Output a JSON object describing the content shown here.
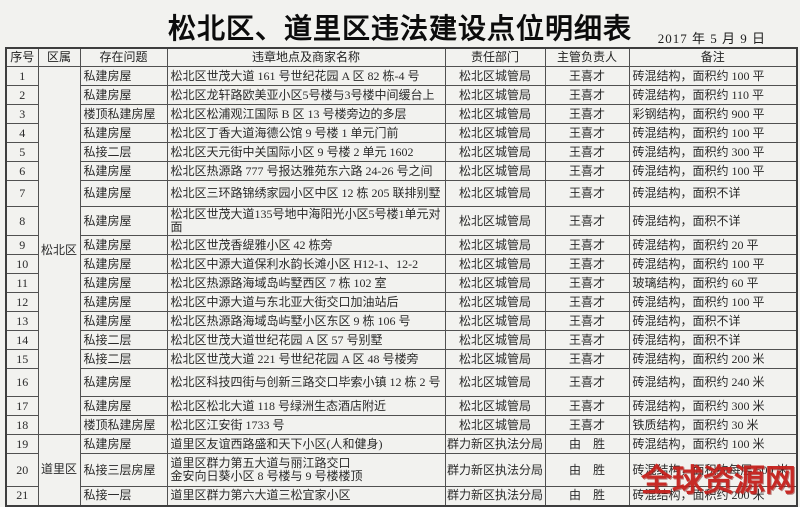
{
  "title": "松北区、道里区违法建设点位明细表",
  "date": "2017 年 5 月 9 日",
  "watermark": {
    "text": "全球资源网",
    "color": "#c5201c"
  },
  "table": {
    "columns": [
      "序号",
      "区属",
      "存在问题",
      "违章地点及商家名称",
      "责任部门",
      "主管负责人",
      "备注"
    ],
    "districts": [
      {
        "label": "松北区",
        "start": 1,
        "span": 18
      },
      {
        "label": "道里区",
        "start": 19,
        "span": 3
      }
    ],
    "rows": [
      {
        "no": "1",
        "problem": "私建房屋",
        "location": "松北区世茂大道 161 号世纪花园 A 区 82 栋-4 号",
        "department": "松北区城管局",
        "manager": "王喜才",
        "remark": "砖混结构，面积约 100 平"
      },
      {
        "no": "2",
        "problem": "私建房屋",
        "location": "松北区龙轩路欧美亚小区5号楼与3号楼中间缓台上",
        "department": "松北区城管局",
        "manager": "王喜才",
        "remark": "砖混结构，面积约 110 平"
      },
      {
        "no": "3",
        "problem": "楼顶私建房屋",
        "location": "松北区松浦观江国际 B 区 13 号楼旁边的多层",
        "department": "松北区城管局",
        "manager": "王喜才",
        "remark": "彩钢结构，面积约 900 平"
      },
      {
        "no": "4",
        "problem": "私建房屋",
        "location": "松北区丁香大道海德公馆 9 号楼 1 单元门前",
        "department": "松北区城管局",
        "manager": "王喜才",
        "remark": "砖混结构，面积约 100 平"
      },
      {
        "no": "5",
        "problem": "私接二层",
        "location": "松北区天元街中关国际小区 9 号楼 2 单元 1602",
        "department": "松北区城管局",
        "manager": "王喜才",
        "remark": "砖混结构，面积约 300 平"
      },
      {
        "no": "6",
        "problem": "私建房屋",
        "location": "松北区热源路 777 号报达雅苑东六路 24-26 号之间",
        "department": "松北区城管局",
        "manager": "王喜才",
        "remark": "砖混结构，面积约 100 平"
      },
      {
        "no": "7",
        "problem": "私建房屋",
        "location": "松北区三环路锦绣家园小区中区 12 栋 205 联排别墅",
        "department": "松北区城管局",
        "manager": "王喜才",
        "remark": "砖混结构，面积不详"
      },
      {
        "no": "8",
        "problem": "私建房屋",
        "location": "松北区世茂大道135号地中海阳光小区5号楼1单元对面",
        "department": "松北区城管局",
        "manager": "王喜才",
        "remark": "砖混结构，面积不详"
      },
      {
        "no": "9",
        "problem": "私建房屋",
        "location": "松北区世茂香缇雅小区 42 栋旁",
        "department": "松北区城管局",
        "manager": "王喜才",
        "remark": "砖混结构，面积约 20 平"
      },
      {
        "no": "10",
        "problem": "私建房屋",
        "location": "松北区中源大道保利水韵长滩小区 H12-1、12-2",
        "department": "松北区城管局",
        "manager": "王喜才",
        "remark": "砖混结构，面积约 100 平"
      },
      {
        "no": "11",
        "problem": "私建房屋",
        "location": "松北区热源路海域岛屿墅西区 7 栋 102 室",
        "department": "松北区城管局",
        "manager": "王喜才",
        "remark": "玻璃结构，面积约 60 平"
      },
      {
        "no": "12",
        "problem": "私建房屋",
        "location": "松北区中源大道与东北亚大街交口加油站后",
        "department": "松北区城管局",
        "manager": "王喜才",
        "remark": "砖混结构，面积约 100 平"
      },
      {
        "no": "13",
        "problem": "私建房屋",
        "location": "松北区热源路海域岛屿墅小区东区 9 栋 106 号",
        "department": "松北区城管局",
        "manager": "王喜才",
        "remark": "砖混结构，面积不详"
      },
      {
        "no": "14",
        "problem": "私接二层",
        "location": "松北区世茂大道世纪花园 A 区 57 号别墅",
        "department": "松北区城管局",
        "manager": "王喜才",
        "remark": "砖混结构，面积不详"
      },
      {
        "no": "15",
        "problem": "私接二层",
        "location": "松北区世茂大道 221 号世纪花园 A 区 48 号楼旁",
        "department": "松北区城管局",
        "manager": "王喜才",
        "remark": "砖混结构，面积约 200 米"
      },
      {
        "no": "16",
        "problem": "私建房屋",
        "location": "松北区科技四街与创新三路交口毕索小镇 12 栋 2 号",
        "department": "松北区城管局",
        "manager": "王喜才",
        "remark": "砖混结构，面积约 240 米"
      },
      {
        "no": "17",
        "problem": "私建房屋",
        "location": "松北区松北大道 118 号绿洲生态酒店附近",
        "department": "松北区城管局",
        "manager": "王喜才",
        "remark": "砖混结构，面积约 300 米"
      },
      {
        "no": "18",
        "problem": "楼顶私建房屋",
        "location": "松北区江安街 1733 号",
        "department": "松北区城管局",
        "manager": "王喜才",
        "remark": "铁质结构，面积约 30 米"
      },
      {
        "no": "19",
        "problem": "私建房屋",
        "location": "道里区友谊西路盛和天下小区(人和健身)",
        "department": "群力新区执法分局",
        "manager": "由　胜",
        "remark": "砖混结构，面积约 100 米"
      },
      {
        "no": "20",
        "problem": "私接三层房屋",
        "location": "道里区群力第五大道与丽江路交口\n金安向日葵小区 8 号楼与 9 号楼楼顶",
        "department": "群力新区执法分局",
        "manager": "由　胜",
        "remark": "砖混结构，面积约每层 500 米"
      },
      {
        "no": "21",
        "problem": "私接一层",
        "location": "道里区群力第六大道三松宜家小区",
        "department": "群力新区执法分局",
        "manager": "由　胜",
        "remark": "砖混结构，面积约 200 米"
      }
    ]
  }
}
